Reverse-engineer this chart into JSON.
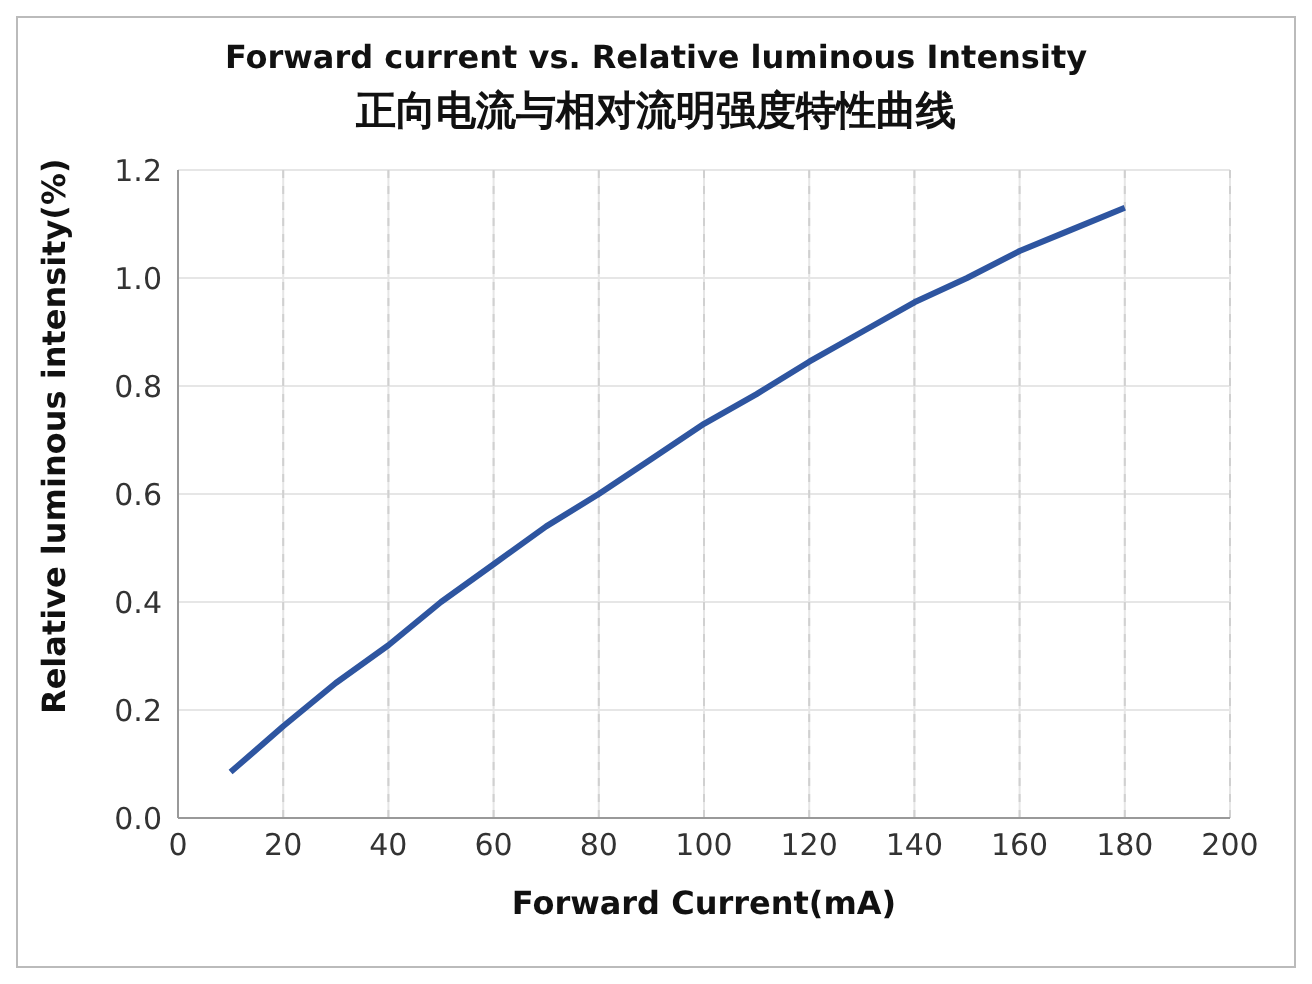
{
  "chart_data": {
    "type": "line",
    "title": "Forward current vs. Relative luminous Intensity",
    "subtitle": "正向电流与相对流明强度特性曲线",
    "xlabel": "Forward Current(mA)",
    "ylabel": "Relative luminous intensity(%)",
    "x": [
      10,
      20,
      30,
      40,
      50,
      60,
      70,
      80,
      90,
      100,
      110,
      120,
      130,
      140,
      150,
      160,
      170,
      180
    ],
    "series": [
      {
        "color": "#2e55a0",
        "values": [
          0.085,
          0.17,
          0.25,
          0.32,
          0.4,
          0.47,
          0.54,
          0.6,
          0.665,
          0.73,
          0.785,
          0.845,
          0.9,
          0.955,
          1.0,
          1.05,
          1.09,
          1.13
        ]
      }
    ],
    "xlim": [
      0,
      200
    ],
    "xticks": [
      0,
      20,
      40,
      60,
      80,
      100,
      120,
      140,
      160,
      180,
      200
    ],
    "ylim": [
      0,
      1.2
    ],
    "yticks": [
      {
        "value": 0,
        "label": "0.0"
      },
      {
        "value": 0.2,
        "label": "0.2"
      },
      {
        "value": 0.4,
        "label": "0.4"
      },
      {
        "value": 0.6,
        "label": "0.6"
      },
      {
        "value": 0.8,
        "label": "0.8"
      },
      {
        "value": 1.0,
        "label": "1.0"
      },
      {
        "value": 1.2,
        "label": "1.2"
      }
    ],
    "grid": true,
    "legend": false,
    "marker": "none",
    "line_style": "solid"
  }
}
